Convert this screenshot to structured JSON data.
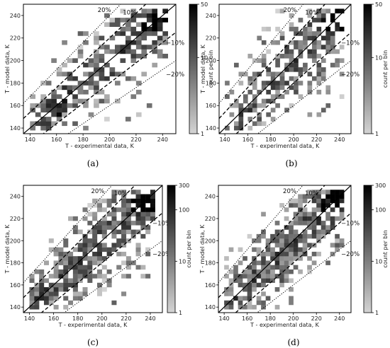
{
  "chart_data": [
    {
      "type": "heatmap",
      "panel_label": "(a)",
      "xlabel": "T - experimental data, K",
      "ylabel": "T - model data, K",
      "xlim": [
        135,
        250
      ],
      "ylim": [
        135,
        250
      ],
      "xticks": [
        140,
        160,
        180,
        200,
        220,
        240
      ],
      "yticks": [
        140,
        160,
        180,
        200,
        220,
        240
      ],
      "colorbar": {
        "label": "count per bin",
        "scale": "log",
        "min": 1,
        "max": 50,
        "ticks": [
          1,
          10,
          50
        ]
      },
      "reference_lines": [
        {
          "label": "20%",
          "factor": 1.2,
          "style": "dotted"
        },
        {
          "label": "10%",
          "factor": 1.1,
          "style": "dashed"
        },
        {
          "label": "",
          "factor": 1.0,
          "style": "solid"
        },
        {
          "label": "−10%",
          "factor": 0.9,
          "style": "dashed"
        },
        {
          "label": "−20%",
          "factor": 0.8,
          "style": "dotted"
        }
      ],
      "seed": 11
    },
    {
      "type": "heatmap",
      "panel_label": "(b)",
      "xlabel": "T - experimental data, K",
      "ylabel": "T - model data, K",
      "xlim": [
        135,
        250
      ],
      "ylim": [
        135,
        250
      ],
      "xticks": [
        140,
        160,
        180,
        200,
        220,
        240
      ],
      "yticks": [
        140,
        160,
        180,
        200,
        220,
        240
      ],
      "colorbar": {
        "label": "count per bin",
        "scale": "log",
        "min": 1,
        "max": 50,
        "ticks": [
          1,
          10,
          50
        ]
      },
      "reference_lines": [
        {
          "label": "20%",
          "factor": 1.2,
          "style": "dotted"
        },
        {
          "label": "10%",
          "factor": 1.1,
          "style": "dashed"
        },
        {
          "label": "",
          "factor": 1.0,
          "style": "solid"
        },
        {
          "label": "−10%",
          "factor": 0.9,
          "style": "dashed"
        },
        {
          "label": "−20%",
          "factor": 0.8,
          "style": "dotted"
        }
      ],
      "seed": 23
    },
    {
      "type": "heatmap",
      "panel_label": "(c)",
      "xlabel": "T - experimental data, K",
      "ylabel": "T - model data, K",
      "xlim": [
        135,
        250
      ],
      "ylim": [
        135,
        250
      ],
      "xticks": [
        140,
        160,
        180,
        200,
        220,
        240
      ],
      "yticks": [
        140,
        160,
        180,
        200,
        220,
        240
      ],
      "colorbar": {
        "label": "count per bin",
        "scale": "log",
        "min": 1,
        "max": 300,
        "ticks": [
          1,
          10,
          100,
          300
        ]
      },
      "reference_lines": [
        {
          "label": "20%",
          "factor": 1.2,
          "style": "dotted"
        },
        {
          "label": "10%",
          "factor": 1.1,
          "style": "dashed"
        },
        {
          "label": "",
          "factor": 1.0,
          "style": "solid"
        },
        {
          "label": "−10%",
          "factor": 0.9,
          "style": "dashed"
        },
        {
          "label": "−20%",
          "factor": 0.8,
          "style": "dotted"
        }
      ],
      "seed": 37
    },
    {
      "type": "heatmap",
      "panel_label": "(d)",
      "xlabel": "T - experimental data, K",
      "ylabel": "T - model data, K",
      "xlim": [
        135,
        250
      ],
      "ylim": [
        135,
        250
      ],
      "xticks": [
        140,
        160,
        180,
        200,
        220,
        240
      ],
      "yticks": [
        140,
        160,
        180,
        200,
        220,
        240
      ],
      "colorbar": {
        "label": "count per bin",
        "scale": "log",
        "min": 1,
        "max": 300,
        "ticks": [
          1,
          10,
          100,
          300
        ]
      },
      "reference_lines": [
        {
          "label": "20%",
          "factor": 1.2,
          "style": "dotted"
        },
        {
          "label": "10%",
          "factor": 1.1,
          "style": "dashed"
        },
        {
          "label": "",
          "factor": 1.0,
          "style": "solid"
        },
        {
          "label": "−10%",
          "factor": 0.9,
          "style": "dashed"
        },
        {
          "label": "−20%",
          "factor": 0.8,
          "style": "dotted"
        }
      ],
      "seed": 53
    }
  ]
}
